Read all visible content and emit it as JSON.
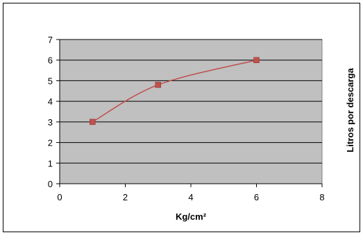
{
  "chart_data": {
    "type": "line",
    "title": "",
    "xlabel": "Kg/cm²",
    "ylabel": "Litros por descarga",
    "xlim": [
      0,
      8
    ],
    "ylim": [
      0,
      7
    ],
    "xticks": [
      "0",
      "2",
      "4",
      "6",
      "8"
    ],
    "yticks": [
      "0",
      "1",
      "2",
      "3",
      "4",
      "5",
      "6",
      "7"
    ],
    "grid": "horizontal",
    "smooth": true,
    "legend": "none",
    "series": [
      {
        "x": [
          1,
          3,
          6
        ],
        "y": [
          3,
          4.8,
          6
        ],
        "color": "#c0504d",
        "marker": "square"
      }
    ],
    "plot_background": "#c0c0c0"
  }
}
